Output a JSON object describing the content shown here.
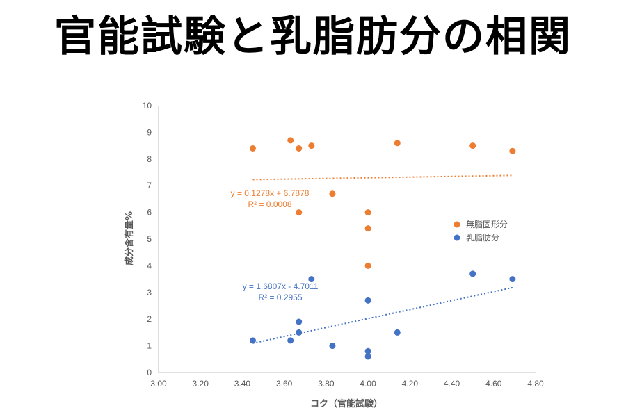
{
  "title": "官能試験と乳脂肪分の相関",
  "chart_data": {
    "type": "scatter",
    "title": "",
    "xlabel": "コク（官能試験）",
    "ylabel": "成分含有量%",
    "xlim": [
      3.0,
      4.8
    ],
    "ylim": [
      0,
      10
    ],
    "x_ticks": [
      "3.00",
      "3.20",
      "3.40",
      "3.60",
      "3.80",
      "4.00",
      "4.20",
      "4.40",
      "4.60",
      "4.80"
    ],
    "y_ticks": [
      "0",
      "1",
      "2",
      "3",
      "4",
      "5",
      "6",
      "7",
      "8",
      "9",
      "10"
    ],
    "grid": false,
    "legend_position": "right",
    "series": [
      {
        "name": "無脂固形分",
        "color": "#ED7D31",
        "points": [
          {
            "x": 3.45,
            "y": 8.4
          },
          {
            "x": 3.63,
            "y": 8.7
          },
          {
            "x": 3.67,
            "y": 8.4
          },
          {
            "x": 3.73,
            "y": 8.5
          },
          {
            "x": 4.14,
            "y": 8.6
          },
          {
            "x": 4.5,
            "y": 8.5
          },
          {
            "x": 4.69,
            "y": 8.3
          },
          {
            "x": 3.83,
            "y": 6.7
          },
          {
            "x": 3.67,
            "y": 6.0
          },
          {
            "x": 4.0,
            "y": 6.0
          },
          {
            "x": 4.0,
            "y": 5.4
          },
          {
            "x": 4.0,
            "y": 4.0
          }
        ],
        "trendline": {
          "slope": 0.1278,
          "intercept": 6.7878,
          "x_range": [
            3.45,
            4.69
          ]
        },
        "equation": "y = 0.1278x + 6.7878",
        "r2": "R² = 0.0008"
      },
      {
        "name": "乳脂肪分",
        "color": "#4472C4",
        "points": [
          {
            "x": 3.45,
            "y": 1.2
          },
          {
            "x": 3.63,
            "y": 1.2
          },
          {
            "x": 3.67,
            "y": 1.5
          },
          {
            "x": 3.67,
            "y": 1.9
          },
          {
            "x": 3.73,
            "y": 3.5
          },
          {
            "x": 3.83,
            "y": 1.0
          },
          {
            "x": 4.0,
            "y": 0.8
          },
          {
            "x": 4.0,
            "y": 0.6
          },
          {
            "x": 4.0,
            "y": 2.7
          },
          {
            "x": 4.14,
            "y": 1.5
          },
          {
            "x": 4.5,
            "y": 3.7
          },
          {
            "x": 4.69,
            "y": 3.5
          }
        ],
        "trendline": {
          "slope": 1.6807,
          "intercept": -4.7011,
          "x_range": [
            3.45,
            4.69
          ]
        },
        "equation": "y = 1.6807x - 4.7011",
        "r2": "R² = 0.2955"
      }
    ]
  }
}
